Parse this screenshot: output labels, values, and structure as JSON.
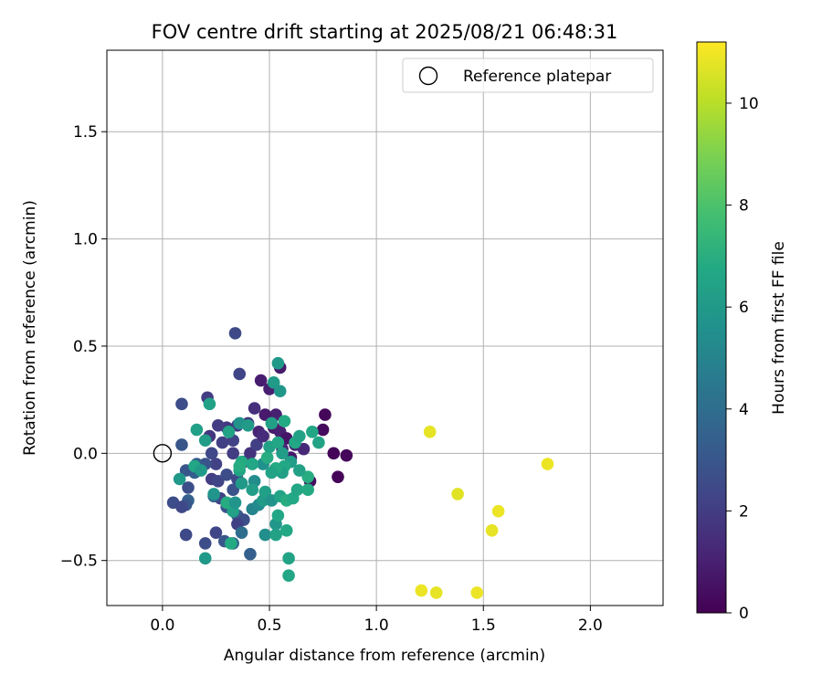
{
  "chart_data": {
    "type": "scatter",
    "title": "FOV centre drift starting at 2025/08/21 06:48:31",
    "xlabel": "Angular distance from reference (arcmin)",
    "ylabel": "Rotation from reference (arcmin)",
    "xlim": [
      -0.26,
      2.34
    ],
    "ylim": [
      -0.71,
      1.88
    ],
    "x_ticks": [
      0.0,
      0.5,
      1.0,
      1.5,
      2.0
    ],
    "x_tick_labels": [
      "0.0",
      "0.5",
      "1.0",
      "1.5",
      "2.0"
    ],
    "y_ticks": [
      -0.5,
      0.0,
      0.5,
      1.0,
      1.5
    ],
    "y_tick_labels": [
      "−0.5",
      "0.0",
      "0.5",
      "1.0",
      "1.5"
    ],
    "grid": true,
    "legend": {
      "placement": "top-right",
      "entries": [
        {
          "label": "Reference platepar",
          "marker": "open-circle"
        }
      ]
    },
    "reference": {
      "x": 0.0,
      "y": 0.0
    },
    "colorbar": {
      "label": "Hours from first FF file",
      "colormap": "viridis",
      "min": 0,
      "max": 11.2,
      "ticks": [
        0,
        2,
        4,
        6,
        8,
        10
      ],
      "tick_labels": [
        "0",
        "2",
        "4",
        "6",
        "8",
        "10"
      ]
    },
    "points": [
      {
        "x": 0.76,
        "y": 0.18,
        "t": 0.2
      },
      {
        "x": 0.75,
        "y": 0.11,
        "t": 0.3
      },
      {
        "x": 0.8,
        "y": 0.0,
        "t": 0.1
      },
      {
        "x": 0.86,
        "y": -0.01,
        "t": 0.2
      },
      {
        "x": 0.82,
        "y": -0.11,
        "t": 0.1
      },
      {
        "x": 0.69,
        "y": -0.13,
        "t": 0.4
      },
      {
        "x": 0.55,
        "y": 0.4,
        "t": 0.8
      },
      {
        "x": 0.46,
        "y": 0.34,
        "t": 0.9
      },
      {
        "x": 0.5,
        "y": 0.3,
        "t": 1.0
      },
      {
        "x": 0.53,
        "y": 0.18,
        "t": 1.0
      },
      {
        "x": 0.48,
        "y": 0.18,
        "t": 0.8
      },
      {
        "x": 0.45,
        "y": 0.1,
        "t": 1.2
      },
      {
        "x": 0.52,
        "y": 0.12,
        "t": 0.7
      },
      {
        "x": 0.55,
        "y": 0.1,
        "t": 1.0
      },
      {
        "x": 0.58,
        "y": 0.07,
        "t": 0.6
      },
      {
        "x": 0.62,
        "y": 0.04,
        "t": 0.9
      },
      {
        "x": 0.56,
        "y": 0.02,
        "t": 1.1
      },
      {
        "x": 0.6,
        "y": -0.02,
        "t": 0.8
      },
      {
        "x": 0.66,
        "y": 0.02,
        "t": 1.3
      },
      {
        "x": 0.43,
        "y": 0.21,
        "t": 1.5
      },
      {
        "x": 0.4,
        "y": 0.14,
        "t": 1.7
      },
      {
        "x": 0.35,
        "y": 0.13,
        "t": 1.9
      },
      {
        "x": 0.3,
        "y": 0.12,
        "t": 1.8
      },
      {
        "x": 0.26,
        "y": 0.13,
        "t": 2.0
      },
      {
        "x": 0.22,
        "y": 0.08,
        "t": 1.8
      },
      {
        "x": 0.28,
        "y": 0.05,
        "t": 2.1
      },
      {
        "x": 0.33,
        "y": 0.06,
        "t": 2.2
      },
      {
        "x": 0.36,
        "y": 0.37,
        "t": 2.3
      },
      {
        "x": 0.34,
        "y": 0.56,
        "t": 2.5
      },
      {
        "x": 0.21,
        "y": 0.26,
        "t": 2.0
      },
      {
        "x": 0.09,
        "y": 0.23,
        "t": 2.6
      },
      {
        "x": 0.09,
        "y": 0.04,
        "t": 3.0
      },
      {
        "x": 0.41,
        "y": 0.0,
        "t": 1.6
      },
      {
        "x": 0.44,
        "y": 0.04,
        "t": 2.1
      },
      {
        "x": 0.47,
        "y": 0.08,
        "t": 1.4
      },
      {
        "x": 0.23,
        "y": 0.0,
        "t": 2.4
      },
      {
        "x": 0.33,
        "y": 0.0,
        "t": 2.0
      },
      {
        "x": 0.38,
        "y": -0.04,
        "t": 1.8
      },
      {
        "x": 0.25,
        "y": -0.05,
        "t": 2.2
      },
      {
        "x": 0.2,
        "y": -0.05,
        "t": 2.9
      },
      {
        "x": 0.16,
        "y": -0.05,
        "t": 3.2
      },
      {
        "x": 0.15,
        "y": -0.09,
        "t": 3.4
      },
      {
        "x": 0.11,
        "y": -0.08,
        "t": 3.0
      },
      {
        "x": 0.12,
        "y": -0.16,
        "t": 2.7
      },
      {
        "x": 0.23,
        "y": -0.12,
        "t": 2.0
      },
      {
        "x": 0.26,
        "y": -0.13,
        "t": 2.3
      },
      {
        "x": 0.3,
        "y": -0.1,
        "t": 2.6
      },
      {
        "x": 0.35,
        "y": -0.12,
        "t": 2.4
      },
      {
        "x": 0.33,
        "y": -0.17,
        "t": 2.8
      },
      {
        "x": 0.27,
        "y": -0.21,
        "t": 2.2
      },
      {
        "x": 0.24,
        "y": -0.2,
        "t": 3.6
      },
      {
        "x": 0.12,
        "y": -0.22,
        "t": 3.5
      },
      {
        "x": 0.11,
        "y": -0.24,
        "t": 3.0
      },
      {
        "x": 0.05,
        "y": -0.23,
        "t": 2.6
      },
      {
        "x": 0.09,
        "y": -0.25,
        "t": 2.4
      },
      {
        "x": 0.3,
        "y": -0.25,
        "t": 2.9
      },
      {
        "x": 0.35,
        "y": -0.29,
        "t": 3.2
      },
      {
        "x": 0.38,
        "y": -0.31,
        "t": 2.7
      },
      {
        "x": 0.35,
        "y": -0.33,
        "t": 2.1
      },
      {
        "x": 0.25,
        "y": -0.37,
        "t": 2.3
      },
      {
        "x": 0.11,
        "y": -0.38,
        "t": 2.5
      },
      {
        "x": 0.2,
        "y": -0.42,
        "t": 2.6
      },
      {
        "x": 0.29,
        "y": -0.41,
        "t": 3.0
      },
      {
        "x": 0.41,
        "y": -0.47,
        "t": 3.4
      },
      {
        "x": 0.33,
        "y": -0.42,
        "t": 3.8
      },
      {
        "x": 0.37,
        "y": -0.37,
        "t": 4.0
      },
      {
        "x": 0.2,
        "y": -0.49,
        "t": 6.0
      },
      {
        "x": 0.48,
        "y": -0.38,
        "t": 5.5
      },
      {
        "x": 0.53,
        "y": -0.33,
        "t": 5.9
      },
      {
        "x": 0.53,
        "y": -0.38,
        "t": 6.4
      },
      {
        "x": 0.58,
        "y": -0.36,
        "t": 6.7
      },
      {
        "x": 0.59,
        "y": -0.49,
        "t": 6.5
      },
      {
        "x": 0.59,
        "y": -0.57,
        "t": 6.6
      },
      {
        "x": 0.32,
        "y": -0.42,
        "t": 6.8
      },
      {
        "x": 0.33,
        "y": -0.27,
        "t": 6.4
      },
      {
        "x": 0.3,
        "y": -0.23,
        "t": 6.9
      },
      {
        "x": 0.34,
        "y": -0.23,
        "t": 5.8
      },
      {
        "x": 0.42,
        "y": -0.26,
        "t": 5.0
      },
      {
        "x": 0.45,
        "y": -0.24,
        "t": 5.3
      },
      {
        "x": 0.47,
        "y": -0.22,
        "t": 6.1
      },
      {
        "x": 0.48,
        "y": -0.18,
        "t": 6.3
      },
      {
        "x": 0.54,
        "y": -0.29,
        "t": 6.6
      },
      {
        "x": 0.51,
        "y": -0.22,
        "t": 5.7
      },
      {
        "x": 0.55,
        "y": -0.2,
        "t": 6.5
      },
      {
        "x": 0.58,
        "y": -0.22,
        "t": 6.9
      },
      {
        "x": 0.61,
        "y": -0.21,
        "t": 6.7
      },
      {
        "x": 0.63,
        "y": -0.17,
        "t": 6.6
      },
      {
        "x": 0.68,
        "y": -0.17,
        "t": 6.8
      },
      {
        "x": 0.68,
        "y": -0.11,
        "t": 6.9
      },
      {
        "x": 0.64,
        "y": -0.08,
        "t": 6.4
      },
      {
        "x": 0.6,
        "y": -0.04,
        "t": 6.2
      },
      {
        "x": 0.57,
        "y": -0.06,
        "t": 6.7
      },
      {
        "x": 0.56,
        "y": -0.09,
        "t": 6.3
      },
      {
        "x": 0.53,
        "y": -0.07,
        "t": 6.8
      },
      {
        "x": 0.51,
        "y": -0.09,
        "t": 6.5
      },
      {
        "x": 0.47,
        "y": -0.05,
        "t": 5.6
      },
      {
        "x": 0.43,
        "y": -0.13,
        "t": 5.4
      },
      {
        "x": 0.42,
        "y": -0.17,
        "t": 6.2
      },
      {
        "x": 0.37,
        "y": -0.14,
        "t": 6.0
      },
      {
        "x": 0.36,
        "y": -0.08,
        "t": 6.5
      },
      {
        "x": 0.37,
        "y": -0.04,
        "t": 6.8
      },
      {
        "x": 0.42,
        "y": -0.05,
        "t": 6.6
      },
      {
        "x": 0.49,
        "y": -0.02,
        "t": 6.9
      },
      {
        "x": 0.5,
        "y": 0.03,
        "t": 6.4
      },
      {
        "x": 0.54,
        "y": 0.05,
        "t": 6.6
      },
      {
        "x": 0.56,
        "y": 0.0,
        "t": 6.2
      },
      {
        "x": 0.62,
        "y": 0.05,
        "t": 6.7
      },
      {
        "x": 0.64,
        "y": 0.08,
        "t": 6.4
      },
      {
        "x": 0.7,
        "y": 0.1,
        "t": 6.6
      },
      {
        "x": 0.73,
        "y": 0.05,
        "t": 6.5
      },
      {
        "x": 0.57,
        "y": 0.15,
        "t": 6.8
      },
      {
        "x": 0.51,
        "y": 0.14,
        "t": 6.3
      },
      {
        "x": 0.52,
        "y": 0.33,
        "t": 6.1
      },
      {
        "x": 0.55,
        "y": 0.29,
        "t": 5.9
      },
      {
        "x": 0.54,
        "y": 0.42,
        "t": 6.0
      },
      {
        "x": 0.36,
        "y": 0.14,
        "t": 5.7
      },
      {
        "x": 0.4,
        "y": 0.13,
        "t": 6.1
      },
      {
        "x": 0.22,
        "y": 0.23,
        "t": 6.4
      },
      {
        "x": 0.2,
        "y": 0.06,
        "t": 6.2
      },
      {
        "x": 0.16,
        "y": 0.11,
        "t": 6.3
      },
      {
        "x": 0.15,
        "y": -0.06,
        "t": 6.6
      },
      {
        "x": 0.18,
        "y": -0.08,
        "t": 6.1
      },
      {
        "x": 0.08,
        "y": -0.12,
        "t": 6.0
      },
      {
        "x": 0.24,
        "y": -0.19,
        "t": 5.8
      },
      {
        "x": 0.36,
        "y": -0.06,
        "t": 6.9
      },
      {
        "x": 0.31,
        "y": 0.1,
        "t": 6.5
      },
      {
        "x": 1.25,
        "y": 0.1,
        "t": 10.8
      },
      {
        "x": 1.8,
        "y": -0.05,
        "t": 10.9
      },
      {
        "x": 1.38,
        "y": -0.19,
        "t": 10.7
      },
      {
        "x": 1.57,
        "y": -0.27,
        "t": 10.9
      },
      {
        "x": 1.54,
        "y": -0.36,
        "t": 10.8
      },
      {
        "x": 1.21,
        "y": -0.64,
        "t": 10.9
      },
      {
        "x": 1.28,
        "y": -0.65,
        "t": 10.8
      },
      {
        "x": 1.47,
        "y": -0.65,
        "t": 10.9
      }
    ]
  }
}
